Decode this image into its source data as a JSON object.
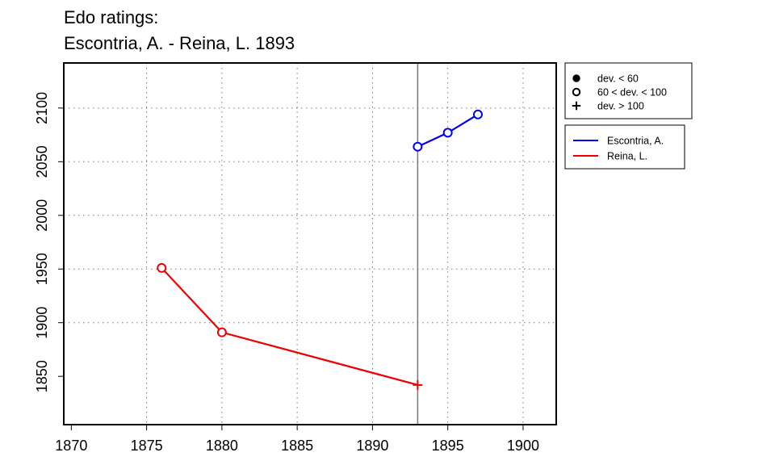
{
  "chart_data": {
    "type": "line",
    "title_lines": [
      "Edo ratings:",
      "Escontria, A. - Reina, L. 1893"
    ],
    "xlabel": "",
    "ylabel": "",
    "xlim": [
      1869.5,
      1902.2
    ],
    "ylim": [
      1805,
      2142
    ],
    "xticks": [
      1870,
      1875,
      1880,
      1885,
      1890,
      1895,
      1900
    ],
    "yticks": [
      1850,
      1900,
      1950,
      2000,
      2050,
      2100
    ],
    "grid": "dotted",
    "vline_x": 1893,
    "series": [
      {
        "name": "Escontria, A.",
        "color": "#0000ee",
        "points": [
          {
            "x": 1893,
            "y": 2064,
            "marker": "open-circle"
          },
          {
            "x": 1895,
            "y": 2077,
            "marker": "open-circle"
          },
          {
            "x": 1897,
            "y": 2094,
            "marker": "open-circle"
          }
        ]
      },
      {
        "name": "Reina, L.",
        "color": "#ee0000",
        "points": [
          {
            "x": 1876,
            "y": 1951,
            "marker": "open-circle"
          },
          {
            "x": 1880,
            "y": 1891,
            "marker": "open-circle"
          },
          {
            "x": 1893,
            "y": 1842,
            "marker": "plus"
          }
        ]
      }
    ],
    "marker_legend": [
      {
        "label": "dev. < 60",
        "marker": "filled-circle"
      },
      {
        "label": "60 < dev. < 100",
        "marker": "open-circle"
      },
      {
        "label": "dev. > 100",
        "marker": "plus"
      }
    ],
    "series_legend_placement": "right"
  }
}
